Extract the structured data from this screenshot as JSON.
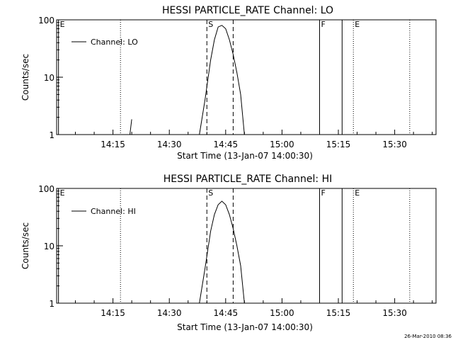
{
  "footer": {
    "timestamp": "26-Mar-2010 08:36"
  },
  "chart_data": [
    {
      "type": "line",
      "title": "HESSI PARTICLE_RATE Channel: LO",
      "xlabel": "Start Time (13-Jan-07 14:00:30)",
      "ylabel": "Counts/sec",
      "yscale": "log",
      "ylim": [
        1,
        100
      ],
      "xlim": [
        "14:00",
        "15:41"
      ],
      "x_ticks": [
        "14:15",
        "14:30",
        "14:45",
        "15:00",
        "15:15",
        "15:30"
      ],
      "y_ticks": [
        "1",
        "10",
        "100"
      ],
      "legend": {
        "entries": [
          "Channel: LO"
        ],
        "placement": "top-left"
      },
      "grid": false,
      "markers": [
        {
          "time": "14:00:30",
          "label": "E",
          "style": "solid"
        },
        {
          "time": "14:17",
          "label": "",
          "style": "dotted"
        },
        {
          "time": "14:40",
          "label": "S",
          "style": "dashed"
        },
        {
          "time": "14:47",
          "label": "",
          "style": "dashed"
        },
        {
          "time": "15:10",
          "label": "F",
          "style": "solid"
        },
        {
          "time": "15:16",
          "label": "",
          "style": "solid"
        },
        {
          "time": "15:19",
          "label": "E",
          "style": "dotted"
        },
        {
          "time": "15:34",
          "label": "",
          "style": "dotted"
        }
      ],
      "series": [
        {
          "name": "Channel: LO",
          "segments": [
            [
              [
                "14:19:30",
                1.0
              ],
              [
                "14:20",
                1.85
              ]
            ],
            [
              [
                "14:38:00",
                1.0
              ],
              [
                "14:39:30",
                4.0
              ],
              [
                "14:41:00",
                20.0
              ],
              [
                "14:42:00",
                45.0
              ],
              [
                "14:43:00",
                75.0
              ],
              [
                "14:44:00",
                80.0
              ],
              [
                "14:45:00",
                70.0
              ],
              [
                "14:46:00",
                45.0
              ],
              [
                "14:47:00",
                25.0
              ],
              [
                "14:48:00",
                12.0
              ],
              [
                "14:49:00",
                5.0
              ],
              [
                "14:50:00",
                1.0
              ]
            ]
          ]
        }
      ]
    },
    {
      "type": "line",
      "title": "HESSI PARTICLE_RATE Channel: HI",
      "xlabel": "Start Time (13-Jan-07 14:00:30)",
      "ylabel": "Counts/sec",
      "yscale": "log",
      "ylim": [
        1,
        100
      ],
      "xlim": [
        "14:00",
        "15:41"
      ],
      "x_ticks": [
        "14:15",
        "14:30",
        "14:45",
        "15:00",
        "15:15",
        "15:30"
      ],
      "y_ticks": [
        "1",
        "10",
        "100"
      ],
      "legend": {
        "entries": [
          "Channel: HI"
        ],
        "placement": "top-left"
      },
      "grid": false,
      "markers": [
        {
          "time": "14:00:30",
          "label": "E",
          "style": "solid"
        },
        {
          "time": "14:17",
          "label": "",
          "style": "dotted"
        },
        {
          "time": "14:40",
          "label": "S",
          "style": "dashed"
        },
        {
          "time": "14:47",
          "label": "",
          "style": "dashed"
        },
        {
          "time": "15:10",
          "label": "F",
          "style": "solid"
        },
        {
          "time": "15:16",
          "label": "",
          "style": "solid"
        },
        {
          "time": "15:19",
          "label": "E",
          "style": "dotted"
        },
        {
          "time": "15:34",
          "label": "",
          "style": "dotted"
        }
      ],
      "series": [
        {
          "name": "Channel: HI",
          "segments": [
            [
              [
                "14:38:00",
                1.0
              ],
              [
                "14:39:30",
                4.0
              ],
              [
                "14:41:00",
                18.0
              ],
              [
                "14:42:00",
                35.0
              ],
              [
                "14:43:00",
                52.0
              ],
              [
                "14:44:00",
                60.0
              ],
              [
                "14:45:00",
                52.0
              ],
              [
                "14:46:00",
                35.0
              ],
              [
                "14:47:00",
                20.0
              ],
              [
                "14:48:00",
                10.0
              ],
              [
                "14:49:00",
                4.5
              ],
              [
                "14:50:00",
                1.0
              ]
            ]
          ]
        }
      ]
    }
  ]
}
